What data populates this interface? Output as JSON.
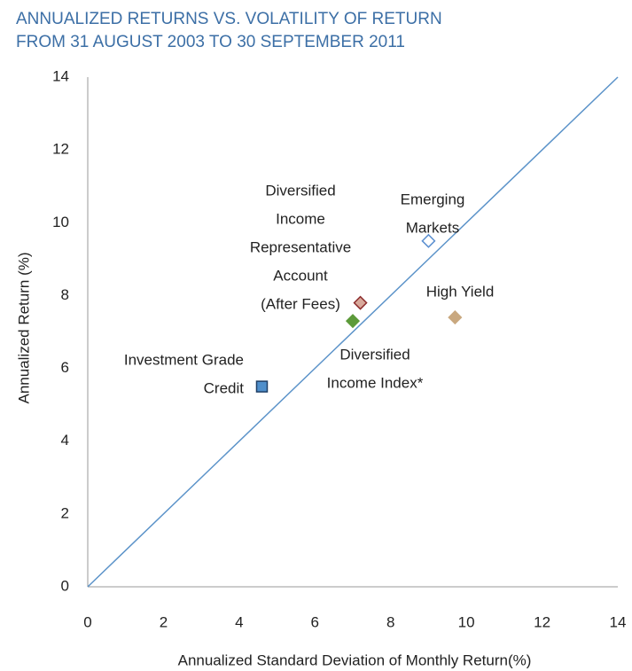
{
  "chart_data": {
    "type": "scatter",
    "title": [
      "ANNUALIZED RETURNS VS. VOLATILITY OF RETURN",
      "FROM 31 AUGUST 2003 TO 30 SEPTEMBER 2011"
    ],
    "x_label": "Annualized Standard Deviation of Monthly Return(%)",
    "y_label": "Annualized Return (%)",
    "xlim": [
      0,
      14
    ],
    "ylim": [
      0,
      14
    ],
    "xticks": [
      0,
      2,
      4,
      6,
      8,
      10,
      12,
      14
    ],
    "yticks": [
      0,
      2,
      4,
      6,
      8,
      10,
      12,
      14
    ],
    "diagonal_line_color": "#5b93c9",
    "series": [
      {
        "name": [
          "Investment Grade",
          "Credit"
        ],
        "marker": "square",
        "color": "#4f8fcb",
        "edge": "#1f3f66",
        "x": [
          4.6
        ],
        "values": [
          5.5
        ]
      },
      {
        "name": [
          "Diversified",
          "Income",
          "Representative",
          "Account",
          "(After Fees)"
        ],
        "marker": "diamond",
        "color": "#d8a99b",
        "edge": "#8b2a2a",
        "x": [
          7.2
        ],
        "values": [
          7.8
        ]
      },
      {
        "name": [
          "Diversified",
          "Income Index*"
        ],
        "marker": "diamond",
        "color": "#5c9a3a",
        "edge": "#5c9a3a",
        "x": [
          7.0
        ],
        "values": [
          7.3
        ]
      },
      {
        "name": [
          "Emerging",
          "Markets"
        ],
        "marker": "diamond",
        "color": "#ffffff",
        "edge": "#5b8fd0",
        "x": [
          9.0
        ],
        "values": [
          9.5
        ]
      },
      {
        "name": [
          "High Yield"
        ],
        "marker": "diamond",
        "color": "#c9a87f",
        "edge": "#c9a87f",
        "x": [
          9.7
        ],
        "values": [
          7.4
        ]
      }
    ]
  }
}
